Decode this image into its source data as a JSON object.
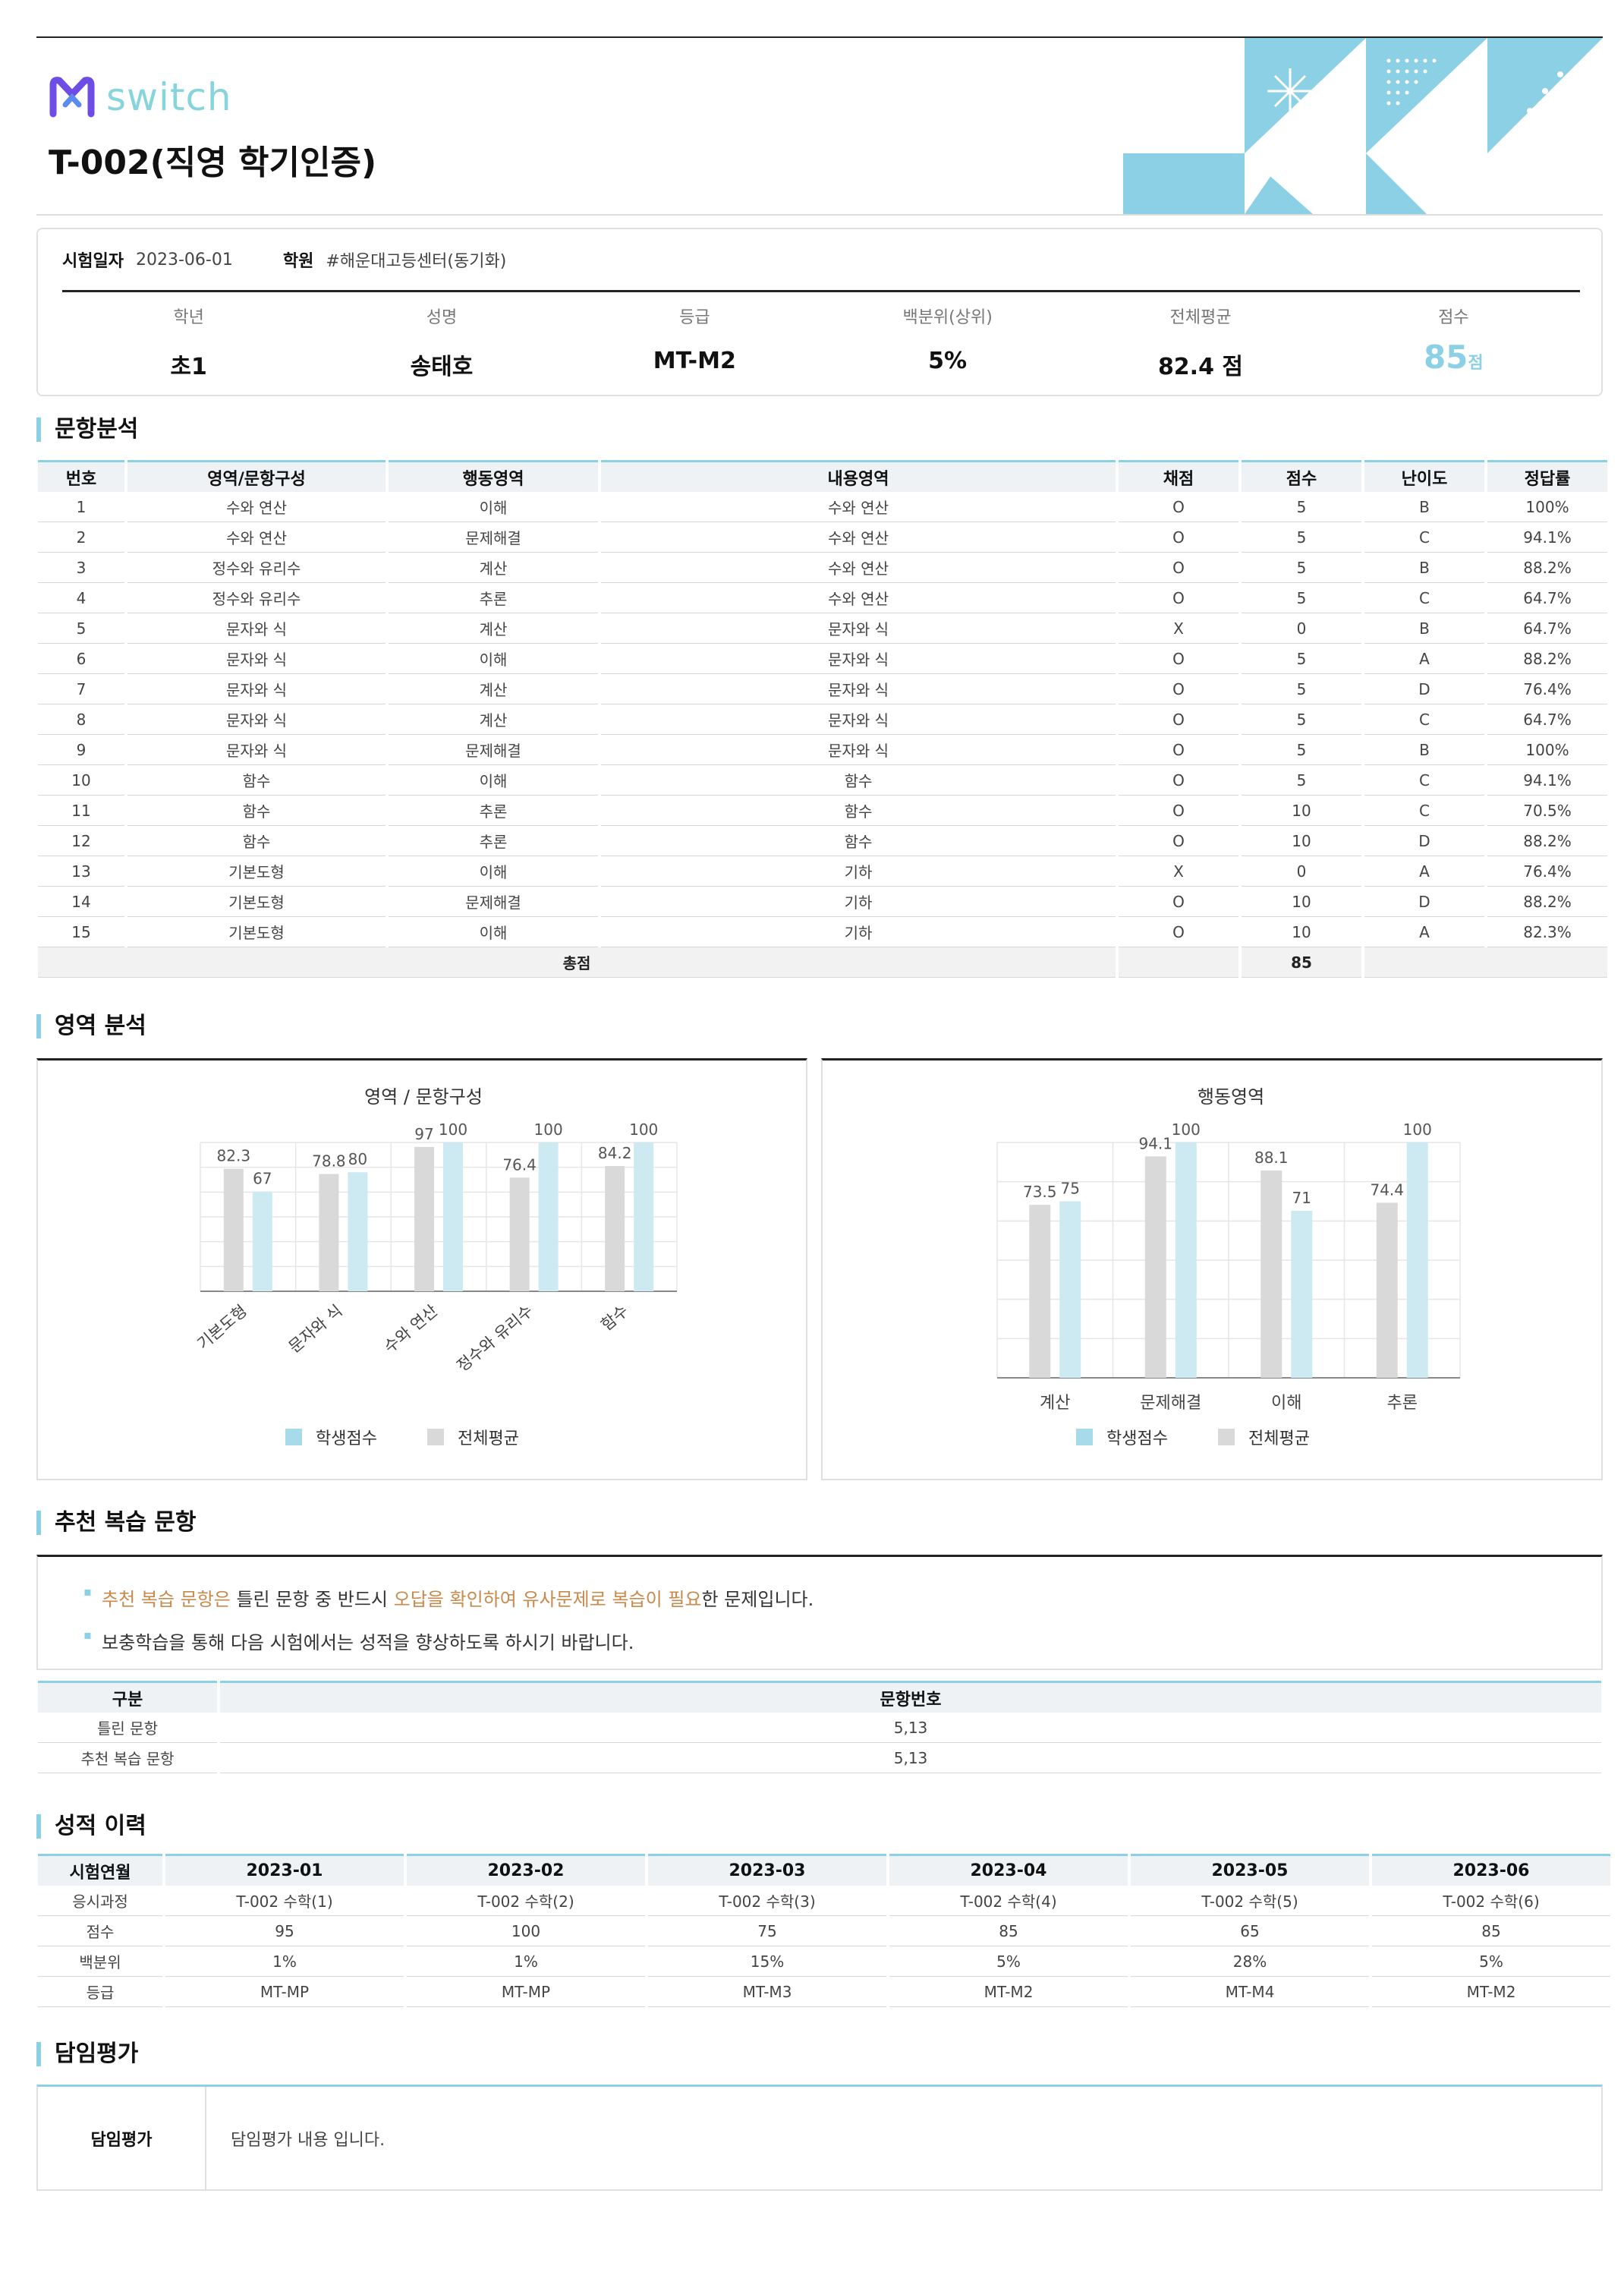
{
  "header": {
    "logo_text": "switch",
    "title": "T-002(직영 학기인증)"
  },
  "info": {
    "date_label": "시험일자",
    "date_value": "2023-06-01",
    "academy_label": "학원",
    "academy_value": "#해운대고등센터(동기화)"
  },
  "summary": [
    {
      "label": "학년",
      "value": "초1"
    },
    {
      "label": "성명",
      "value": "송태호"
    },
    {
      "label": "등급",
      "value": "MT-M2"
    },
    {
      "label": "백분위(상위)",
      "value": "5%"
    },
    {
      "label": "전체평균",
      "value": "82.4 점"
    },
    {
      "label": "점수",
      "value": "85",
      "unit": "점"
    }
  ],
  "sections": {
    "item_analysis": "문항분석",
    "area_analysis": "영역 분석",
    "recommend": "추천 복습 문항",
    "history": "성적 이력",
    "teacher": "담임평가"
  },
  "item_table": {
    "headers": [
      "번호",
      "영역/문항구성",
      "행동영역",
      "내용영역",
      "채점",
      "점수",
      "난이도",
      "정답률"
    ],
    "rows": [
      [
        "1",
        "수와 연산",
        "이해",
        "수와 연산",
        "O",
        "5",
        "B",
        "100%"
      ],
      [
        "2",
        "수와 연산",
        "문제해결",
        "수와 연산",
        "O",
        "5",
        "C",
        "94.1%"
      ],
      [
        "3",
        "정수와 유리수",
        "계산",
        "수와 연산",
        "O",
        "5",
        "B",
        "88.2%"
      ],
      [
        "4",
        "정수와 유리수",
        "추론",
        "수와 연산",
        "O",
        "5",
        "C",
        "64.7%"
      ],
      [
        "5",
        "문자와 식",
        "계산",
        "문자와 식",
        "X",
        "0",
        "B",
        "64.7%"
      ],
      [
        "6",
        "문자와 식",
        "이해",
        "문자와 식",
        "O",
        "5",
        "A",
        "88.2%"
      ],
      [
        "7",
        "문자와 식",
        "계산",
        "문자와 식",
        "O",
        "5",
        "D",
        "76.4%"
      ],
      [
        "8",
        "문자와 식",
        "계산",
        "문자와 식",
        "O",
        "5",
        "C",
        "64.7%"
      ],
      [
        "9",
        "문자와 식",
        "문제해결",
        "문자와 식",
        "O",
        "5",
        "B",
        "100%"
      ],
      [
        "10",
        "함수",
        "이해",
        "함수",
        "O",
        "5",
        "C",
        "94.1%"
      ],
      [
        "11",
        "함수",
        "추론",
        "함수",
        "O",
        "10",
        "C",
        "70.5%"
      ],
      [
        "12",
        "함수",
        "추론",
        "함수",
        "O",
        "10",
        "D",
        "88.2%"
      ],
      [
        "13",
        "기본도형",
        "이해",
        "기하",
        "X",
        "0",
        "A",
        "76.4%"
      ],
      [
        "14",
        "기본도형",
        "문제해결",
        "기하",
        "O",
        "10",
        "D",
        "88.2%"
      ],
      [
        "15",
        "기본도형",
        "이해",
        "기하",
        "O",
        "10",
        "A",
        "82.3%"
      ]
    ],
    "total_label": "총점",
    "total_value": "85"
  },
  "chart_data": [
    {
      "type": "bar",
      "title": "영역 / 문항구성",
      "categories": [
        "기본도형",
        "문자와 식",
        "수와 연산",
        "정수와 유리수",
        "함수"
      ],
      "series": [
        {
          "name": "전체평균",
          "values": [
            82.3,
            78.8,
            97,
            76.4,
            84.2
          ],
          "color": "#d9d9d9"
        },
        {
          "name": "학생점수",
          "values": [
            67,
            80,
            100,
            100,
            100
          ],
          "color": "#cde9f1"
        }
      ],
      "ylim": [
        0,
        100
      ],
      "grid": true
    },
    {
      "type": "bar",
      "title": "행동영역",
      "categories": [
        "계산",
        "문제해결",
        "이해",
        "추론"
      ],
      "series": [
        {
          "name": "전체평균",
          "values": [
            73.5,
            94.1,
            88.1,
            74.4
          ],
          "color": "#d9d9d9"
        },
        {
          "name": "학생점수",
          "values": [
            75,
            100,
            71,
            100
          ],
          "color": "#cde9f1"
        }
      ],
      "ylim": [
        0,
        100
      ],
      "grid": true
    }
  ],
  "legend": {
    "student": "학생점수",
    "average": "전체평균",
    "student_color": "#a8dbe9",
    "average_color": "#d9d9d9"
  },
  "recommend": {
    "line1": {
      "hl1": "추천 복습 문항은",
      "t1": " 틀린 문항 중 반드시 ",
      "hl2": "오답을 확인하여 유사문제로 복습이 필요",
      "t2": "한 문제입니다."
    },
    "line2": "보충학습을 통해 다음 시험에서는 성적을 향상하도록 하시기 바랍니다.",
    "table": {
      "headers": [
        "구분",
        "문항번호"
      ],
      "rows": [
        [
          "틀린 문항",
          "5,13"
        ],
        [
          "추천 복습 문항",
          "5,13"
        ]
      ]
    }
  },
  "history": {
    "headers": [
      "시험연월",
      "2023-01",
      "2023-02",
      "2023-03",
      "2023-04",
      "2023-05",
      "2023-06"
    ],
    "rows": [
      [
        "응시과정",
        "T-002 수학(1)",
        "T-002 수학(2)",
        "T-002 수학(3)",
        "T-002 수학(4)",
        "T-002 수학(5)",
        "T-002 수학(6)"
      ],
      [
        "점수",
        "95",
        "100",
        "75",
        "85",
        "65",
        "85"
      ],
      [
        "백분위",
        "1%",
        "1%",
        "15%",
        "5%",
        "28%",
        "5%"
      ],
      [
        "등급",
        "MT-MP",
        "MT-MP",
        "MT-M3",
        "MT-M2",
        "MT-M4",
        "MT-M2"
      ]
    ]
  },
  "teacher": {
    "label": "담임평가",
    "content": "담임평가 내용 입니다."
  },
  "colors": {
    "accent": "#8cd0e6",
    "highlight": "#c8894b"
  }
}
